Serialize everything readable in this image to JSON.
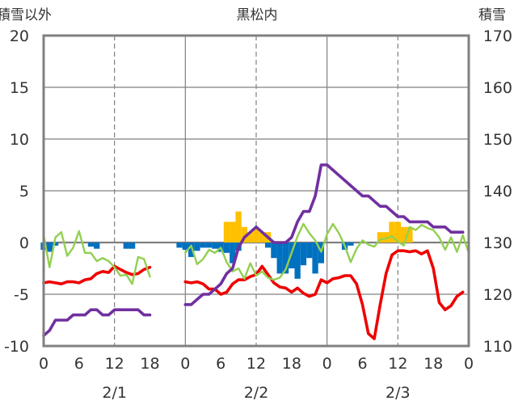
{
  "chart_data": {
    "type": "line",
    "title": "黒松内",
    "left_axis_label": "積雪以外",
    "right_axis_label": "積雪",
    "left_ylim": [
      -10,
      20
    ],
    "right_ylim": [
      110,
      170
    ],
    "left_ticks": [
      "20",
      "15",
      "10",
      "5",
      "0",
      "-5",
      "-10"
    ],
    "right_ticks": [
      "170",
      "160",
      "150",
      "140",
      "130",
      "120",
      "110"
    ],
    "x_ticks": [
      "0",
      "6",
      "12",
      "18",
      "0",
      "6",
      "12",
      "18",
      "0",
      "6",
      "12",
      "18",
      "0"
    ],
    "date_labels": [
      "2/1",
      "2/2",
      "2/3"
    ],
    "x_range_hours": [
      0,
      72
    ],
    "grid": "dashed vertical at 12h, solid at day boundaries",
    "series": [
      {
        "kind": "temperature",
        "color": "#ee0000",
        "points": [
          [
            0,
            -3.9
          ],
          [
            1,
            -3.8
          ],
          [
            2,
            -3.9
          ],
          [
            3,
            -4
          ],
          [
            4,
            -3.8
          ],
          [
            5,
            -3.8
          ],
          [
            6,
            -3.9
          ],
          [
            7,
            -3.6
          ],
          [
            8,
            -3.5
          ],
          [
            9,
            -3
          ],
          [
            10,
            -2.8
          ],
          [
            11,
            -2.9
          ],
          [
            12,
            -2.3
          ],
          [
            13,
            -2.6
          ],
          [
            14,
            -2.9
          ],
          [
            15,
            -3.1
          ],
          [
            16,
            -3
          ],
          [
            17,
            -2.6
          ],
          [
            18,
            -2.4
          ],
          null,
          [
            24,
            -3.8
          ],
          [
            25,
            -3.9
          ],
          [
            26,
            -3.8
          ],
          [
            27,
            -4
          ],
          [
            28,
            -4.5
          ],
          [
            29,
            -4.5
          ],
          [
            30,
            -5
          ],
          [
            31,
            -4.8
          ],
          [
            32,
            -4
          ],
          [
            33,
            -3.6
          ],
          [
            34,
            -3.6
          ],
          [
            35,
            -3.3
          ],
          [
            36,
            -3.1
          ],
          [
            37,
            -2.3
          ],
          [
            38,
            -3.1
          ],
          [
            39,
            -3.9
          ],
          [
            40,
            -4.3
          ],
          [
            41,
            -4.4
          ],
          [
            42,
            -4.8
          ],
          [
            43,
            -4.4
          ],
          [
            44,
            -4.9
          ],
          [
            45,
            -5.2
          ],
          [
            46,
            -5
          ],
          [
            47,
            -3.6
          ],
          [
            48,
            -3.9
          ],
          [
            49,
            -3.5
          ],
          [
            50,
            -3.4
          ],
          [
            51,
            -3.2
          ],
          [
            52,
            -3.2
          ],
          [
            53,
            -4
          ],
          [
            54,
            -6
          ],
          [
            55,
            -8.8
          ],
          [
            56,
            -9.3
          ],
          [
            57,
            -6
          ],
          [
            58,
            -3
          ],
          [
            59,
            -1.2
          ],
          [
            60,
            -0.8
          ],
          [
            61,
            -0.8
          ],
          [
            62,
            -0.9
          ],
          [
            63,
            -0.8
          ],
          [
            64,
            -1.1
          ],
          [
            65,
            -0.8
          ],
          [
            66,
            -2.5
          ],
          [
            67,
            -5.8
          ],
          [
            68,
            -6.5
          ],
          [
            69,
            -6.1
          ],
          [
            70,
            -5.2
          ],
          [
            71,
            -4.8
          ]
        ]
      },
      {
        "kind": "wind",
        "color": "#92d050",
        "points": [
          [
            0,
            0.7
          ],
          [
            1,
            -2.4
          ],
          [
            2,
            0.5
          ],
          [
            3,
            1
          ],
          [
            4,
            -1.3
          ],
          [
            5,
            -0.5
          ],
          [
            6,
            1.1
          ],
          [
            7,
            -1
          ],
          [
            8,
            -1
          ],
          [
            9,
            -1.8
          ],
          [
            10,
            -1.5
          ],
          [
            11,
            -1.8
          ],
          [
            12,
            -2.4
          ],
          [
            13,
            -3.2
          ],
          [
            14,
            -3.1
          ],
          [
            15,
            -4
          ],
          [
            16,
            -1.4
          ],
          [
            17,
            -1.6
          ],
          [
            18,
            -3.3
          ],
          null,
          [
            24,
            -1
          ],
          [
            25,
            -0.3
          ],
          [
            26,
            -2.1
          ],
          [
            27,
            -1.6
          ],
          [
            28,
            -0.7
          ],
          [
            29,
            -1
          ],
          [
            30,
            -0.5
          ],
          [
            31,
            -1.9
          ],
          [
            32,
            -2.8
          ],
          [
            33,
            -2.5
          ],
          [
            34,
            -3.5
          ],
          [
            35,
            -2
          ],
          [
            36,
            -3.2
          ],
          [
            37,
            -2.8
          ],
          [
            38,
            -3.4
          ],
          [
            39,
            -3.6
          ],
          [
            40,
            -3.4
          ],
          [
            41,
            -2.6
          ],
          [
            42,
            -1
          ],
          [
            43,
            0.6
          ],
          [
            44,
            1.8
          ],
          [
            45,
            0.9
          ],
          [
            46,
            0.2
          ],
          [
            47,
            -0.9
          ],
          [
            48,
            0.8
          ],
          [
            49,
            1.8
          ],
          [
            50,
            0.9
          ],
          [
            51,
            -0.3
          ],
          [
            52,
            -1.9
          ],
          [
            53,
            -0.6
          ],
          [
            54,
            0.2
          ],
          [
            55,
            -0.2
          ],
          [
            56,
            -0.4
          ],
          [
            57,
            0.3
          ],
          [
            58,
            0.4
          ],
          [
            59,
            0.6
          ],
          [
            60,
            0.1
          ],
          [
            61,
            -0.3
          ],
          [
            62,
            1.5
          ],
          [
            63,
            1.2
          ],
          [
            64,
            1.7
          ],
          [
            65,
            1.4
          ],
          [
            66,
            1.2
          ],
          [
            67,
            0.5
          ],
          [
            68,
            -0.7
          ],
          [
            69,
            0.5
          ],
          [
            70,
            -0.9
          ],
          [
            71,
            0.7
          ],
          [
            72,
            -1
          ]
        ]
      },
      {
        "kind": "snow_depth",
        "axis": "right",
        "color": "#7030a0",
        "points": [
          [
            0,
            112
          ],
          [
            1,
            113
          ],
          [
            2,
            115
          ],
          [
            3,
            115
          ],
          [
            4,
            115
          ],
          [
            5,
            116
          ],
          [
            6,
            116
          ],
          [
            7,
            116
          ],
          [
            8,
            117
          ],
          [
            9,
            117
          ],
          [
            10,
            116
          ],
          [
            11,
            116
          ],
          [
            12,
            117
          ],
          [
            13,
            117
          ],
          [
            14,
            117
          ],
          [
            15,
            117
          ],
          [
            16,
            117
          ],
          [
            17,
            116
          ],
          [
            18,
            116
          ],
          null,
          [
            24,
            118
          ],
          [
            25,
            118
          ],
          [
            26,
            119
          ],
          [
            27,
            120
          ],
          [
            28,
            120
          ],
          [
            29,
            121
          ],
          [
            30,
            122
          ],
          [
            31,
            124
          ],
          [
            32,
            125
          ],
          [
            33,
            129
          ],
          [
            34,
            131
          ],
          [
            35,
            132
          ],
          [
            36,
            133
          ],
          [
            37,
            132
          ],
          [
            38,
            131
          ],
          [
            39,
            130
          ],
          [
            40,
            130
          ],
          [
            41,
            130
          ],
          [
            42,
            131
          ],
          [
            43,
            134
          ],
          [
            44,
            136
          ],
          [
            45,
            136
          ],
          [
            46,
            139
          ],
          [
            47,
            145
          ],
          [
            48,
            145
          ],
          [
            49,
            144
          ],
          [
            50,
            143
          ],
          [
            51,
            142
          ],
          [
            52,
            141
          ],
          [
            53,
            140
          ],
          [
            54,
            139
          ],
          [
            55,
            139
          ],
          [
            56,
            138
          ],
          [
            57,
            137
          ],
          [
            58,
            137
          ],
          [
            59,
            136
          ],
          [
            60,
            135
          ],
          [
            61,
            135
          ],
          [
            62,
            134
          ],
          [
            63,
            134
          ],
          [
            64,
            134
          ],
          [
            65,
            134
          ],
          [
            66,
            133
          ],
          [
            67,
            133
          ],
          [
            68,
            133
          ],
          [
            69,
            132
          ],
          [
            70,
            132
          ],
          [
            71,
            132
          ]
        ]
      }
    ],
    "bars_blue": [
      [
        0,
        -0.7
      ],
      [
        1,
        -0.9
      ],
      [
        2,
        -0.3
      ],
      [
        8,
        -0.4
      ],
      [
        9,
        -0.6
      ],
      [
        14,
        -0.6
      ],
      [
        15,
        -0.6
      ],
      [
        23,
        -0.5
      ],
      [
        24,
        -0.7
      ],
      [
        25,
        -1.4
      ],
      [
        26,
        -0.8
      ],
      [
        27,
        -0.5
      ],
      [
        28,
        -0.5
      ],
      [
        29,
        -0.6
      ],
      [
        30,
        -0.9
      ],
      [
        31,
        -1
      ],
      [
        32,
        -2
      ],
      [
        33,
        -0.8
      ],
      [
        38,
        -0.5
      ],
      [
        39,
        -1.5
      ],
      [
        40,
        -3
      ],
      [
        41,
        -3
      ],
      [
        42,
        -2.5
      ],
      [
        43,
        -3.5
      ],
      [
        44,
        -2.2
      ],
      [
        45,
        -1.5
      ],
      [
        46,
        -3
      ],
      [
        47,
        -2
      ],
      [
        51,
        -0.7
      ],
      [
        52,
        -0.3
      ]
    ],
    "bars_yellow": [
      [
        31,
        2
      ],
      [
        32,
        2
      ],
      [
        33,
        3
      ],
      [
        34,
        1.5
      ],
      [
        35,
        1
      ],
      [
        36,
        1.3
      ],
      [
        37,
        1
      ],
      [
        38,
        1
      ],
      [
        57,
        1
      ],
      [
        58,
        1
      ],
      [
        59,
        2
      ],
      [
        60,
        2
      ],
      [
        61,
        1.5
      ],
      [
        62,
        1.5
      ]
    ]
  }
}
